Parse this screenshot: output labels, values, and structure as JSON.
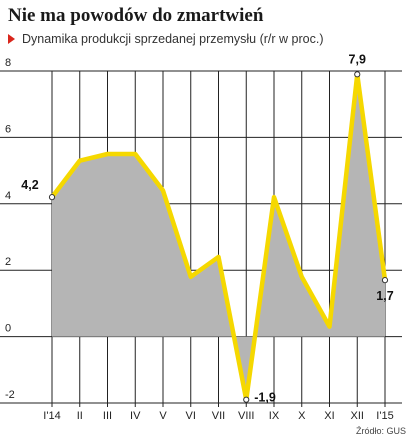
{
  "chart_data": {
    "type": "area",
    "title": "Nie ma powodów do zmartwień",
    "subtitle": "Dynamika produkcji sprzedanej przemysłu (r/r w proc.)",
    "source": "Źródło: GUS",
    "categories": [
      "I'14",
      "II",
      "III",
      "IV",
      "V",
      "VI",
      "VII",
      "VIII",
      "IX",
      "X",
      "XI",
      "XII",
      "I'15"
    ],
    "values": [
      4.2,
      5.3,
      5.5,
      5.5,
      4.4,
      1.8,
      2.4,
      -1.9,
      4.2,
      1.8,
      0.3,
      7.9,
      1.7
    ],
    "y_ticks": [
      "-2",
      "0",
      "2",
      "4",
      "6",
      "8"
    ],
    "ylim": [
      -2,
      8
    ],
    "data_labels": [
      {
        "index": 0,
        "text": "4,2"
      },
      {
        "index": 7,
        "text": "-1,9"
      },
      {
        "index": 11,
        "text": "7,9"
      },
      {
        "index": 12,
        "text": "1,7"
      }
    ],
    "grid": true,
    "legend": "none",
    "colors": {
      "line": "#f5d800",
      "fill": "#b5b5b5",
      "grid": "#222222",
      "marker_fill": "#ffffff"
    }
  }
}
